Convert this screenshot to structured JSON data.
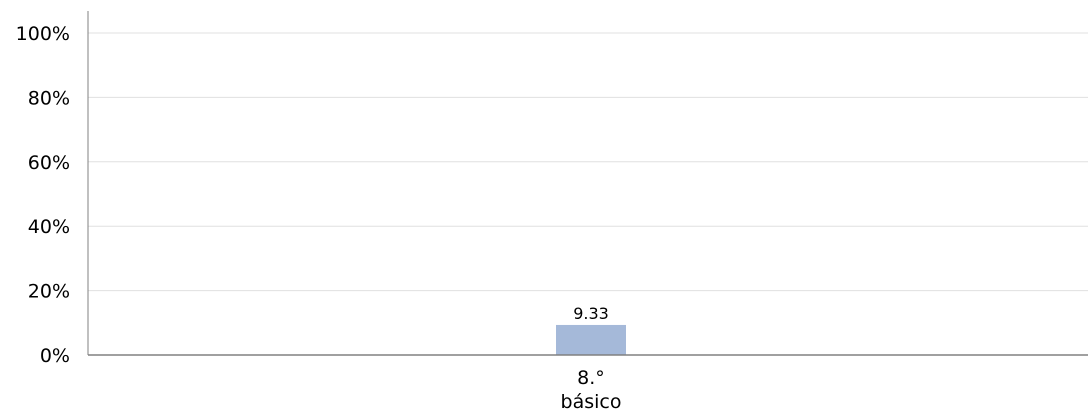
{
  "chart_data": {
    "type": "bar",
    "categories": [
      [
        "8.°",
        "básico"
      ]
    ],
    "values": [
      9.33
    ],
    "data_labels": [
      "9.33"
    ],
    "ylim": [
      0,
      100
    ],
    "yticks": [
      0,
      20,
      40,
      60,
      80,
      100
    ],
    "ytick_labels": [
      "0%",
      "20%",
      "40%",
      "60%",
      "80%",
      "100%"
    ],
    "grid": true,
    "legend": "none",
    "colors": {
      "bar": "#a5b9d9",
      "grid": "#e0e0e0",
      "axis": "#808080"
    }
  }
}
